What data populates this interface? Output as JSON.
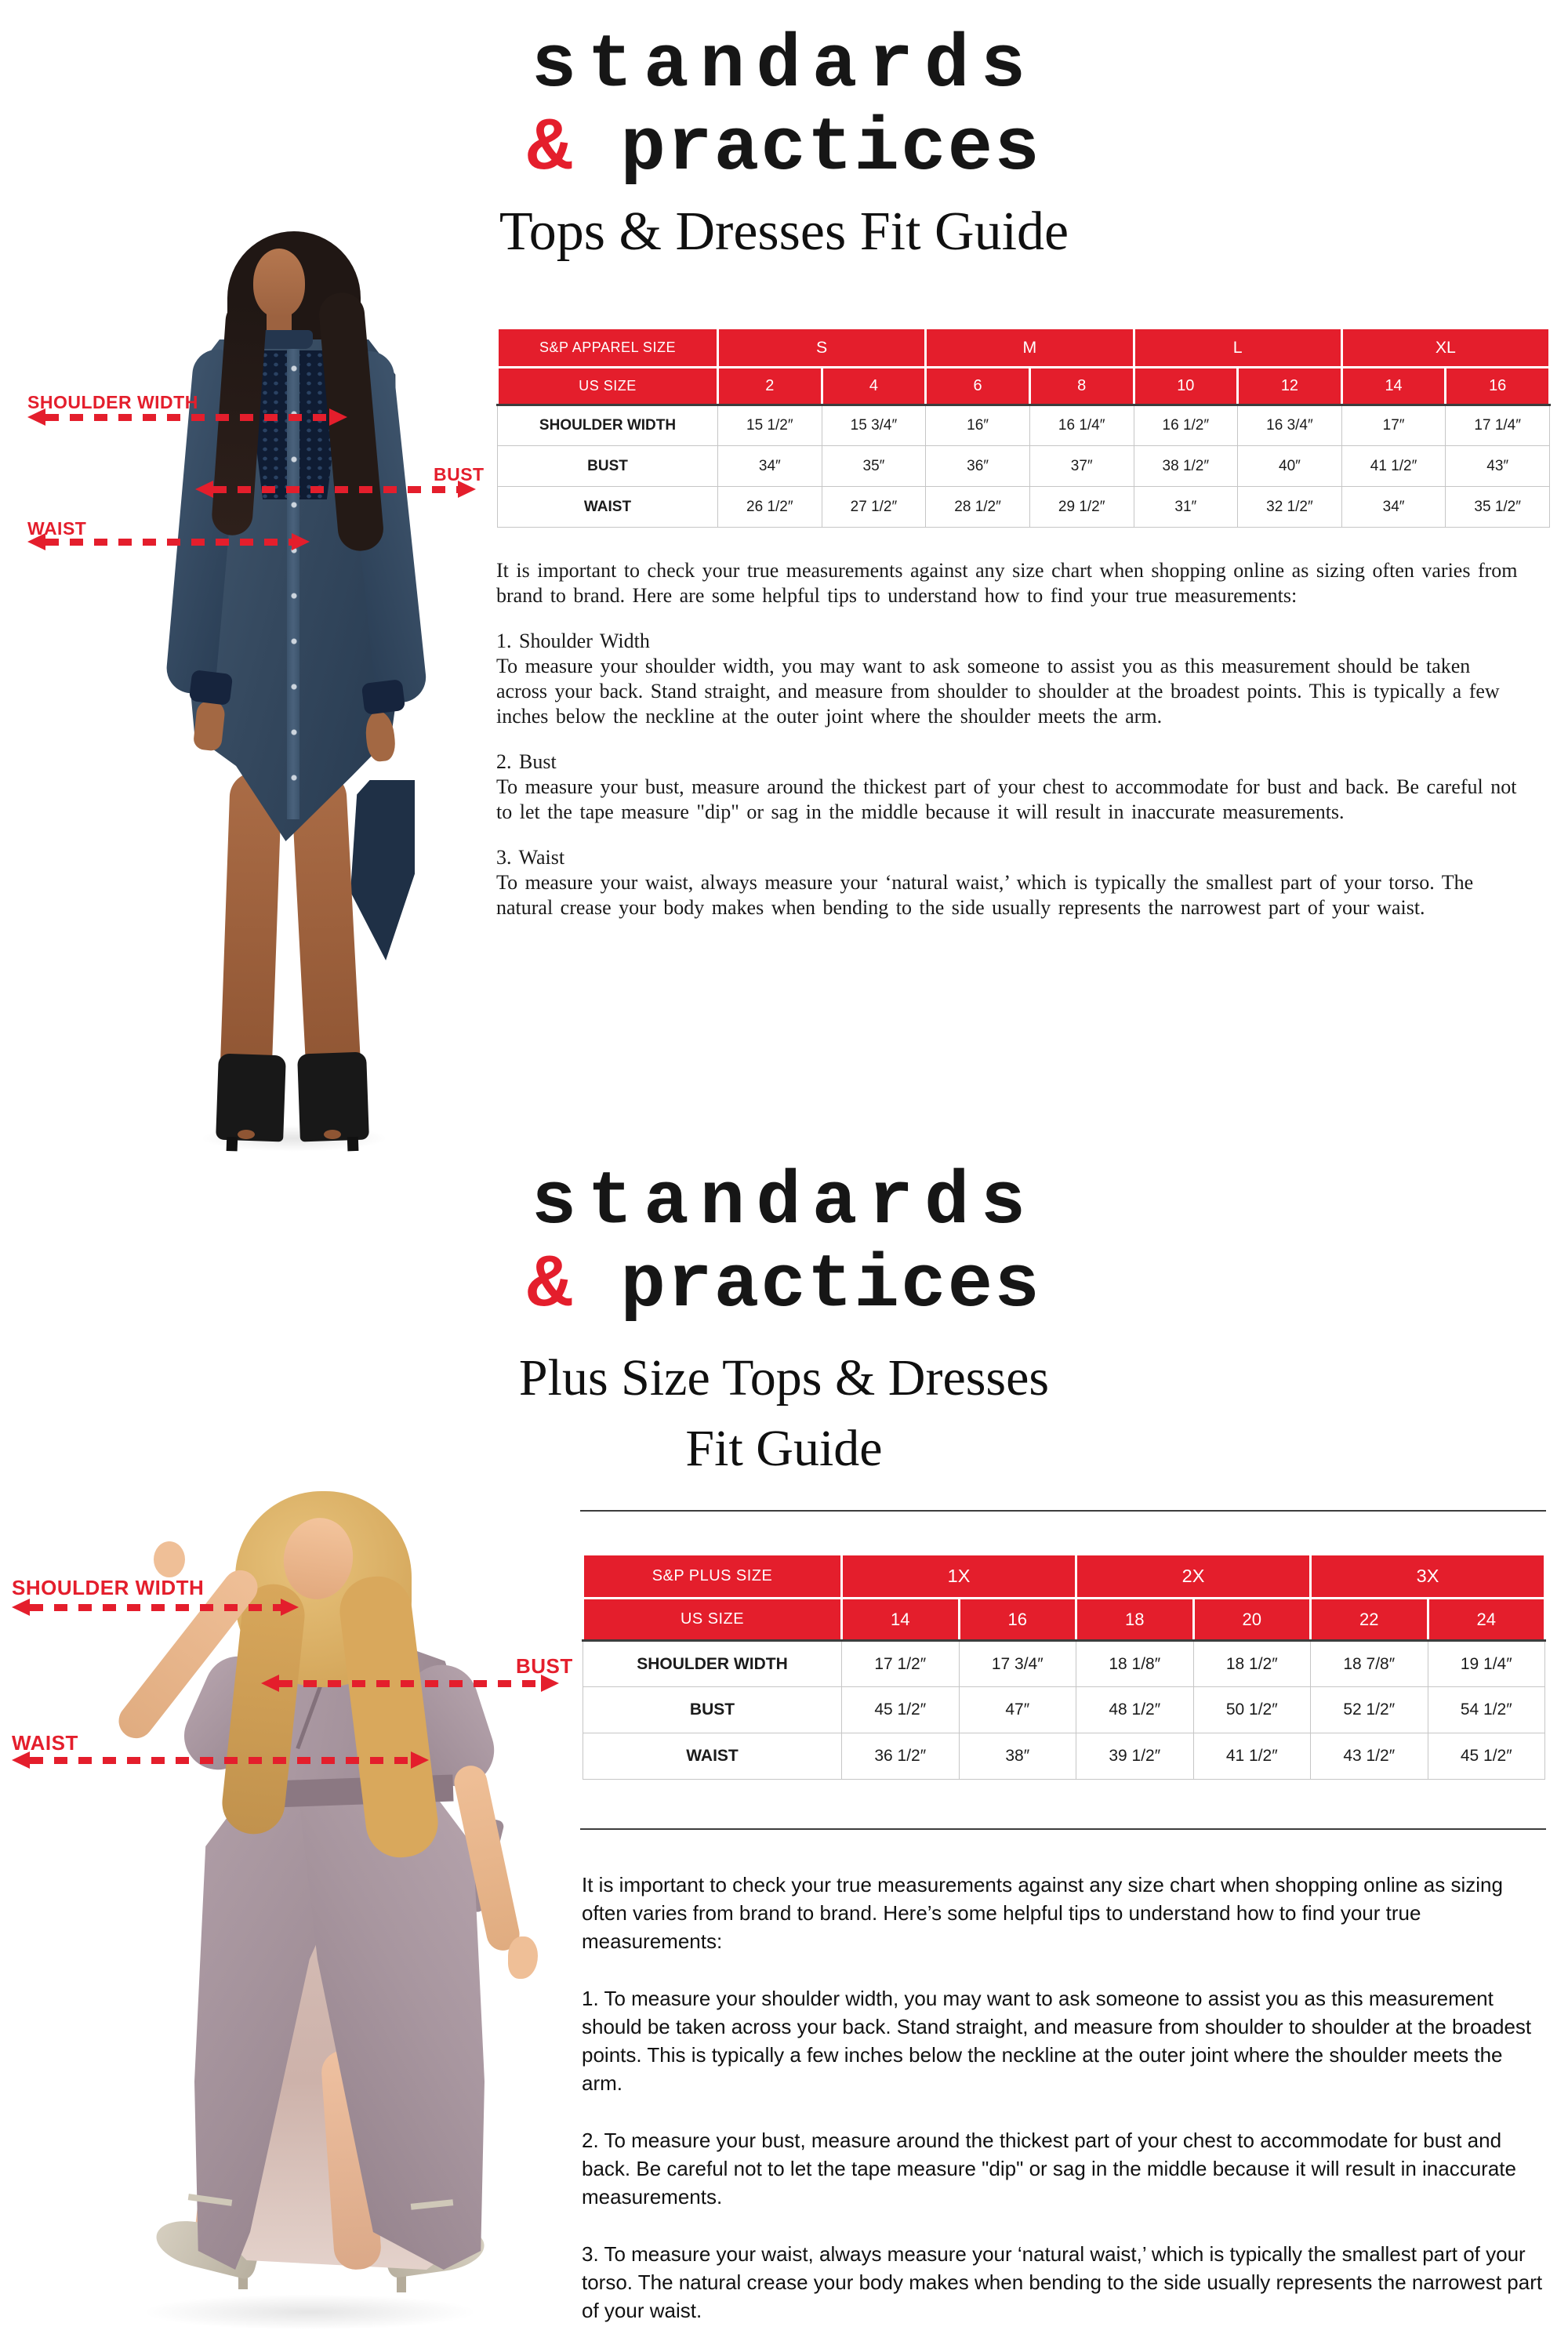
{
  "accent_red": "#e41e2c",
  "brand": {
    "line1": "standards",
    "amp": "&",
    "line2": "practices"
  },
  "regular": {
    "title": "Tops & Dresses Fit Guide",
    "labels": {
      "shoulder": "SHOULDER WIDTH",
      "bust": "BUST",
      "waist": "WAIST"
    },
    "table": {
      "corner": "S&P APPAREL SIZE",
      "us_label": "US SIZE",
      "groups": [
        {
          "label": "S",
          "span": 2
        },
        {
          "label": "M",
          "span": 2
        },
        {
          "label": "L",
          "span": 2
        },
        {
          "label": "XL",
          "span": 2
        }
      ],
      "us_sizes": [
        "2",
        "4",
        "6",
        "8",
        "10",
        "12",
        "14",
        "16"
      ],
      "rows": [
        {
          "label": "SHOULDER WIDTH",
          "values": [
            "15 1/2″",
            "15 3/4″",
            "16″",
            "16 1/4″",
            "16 1/2″",
            "16 3/4″",
            "17″",
            "17 1/4″"
          ]
        },
        {
          "label": "BUST",
          "values": [
            "34″",
            "35″",
            "36″",
            "37″",
            "38 1/2″",
            "40″",
            "41 1/2″",
            "43″"
          ]
        },
        {
          "label": "WAIST",
          "values": [
            "26 1/2″",
            "27 1/2″",
            "28 1/2″",
            "29 1/2″",
            "31″",
            "32 1/2″",
            "34″",
            "35 1/2″"
          ]
        }
      ]
    },
    "intro": "It is important to check your true measurements against any size chart when shopping online as sizing often varies from brand to brand. Here are some helpful tips to understand how to find your true measurements:",
    "tips": [
      {
        "title": "1. Shoulder Width",
        "body": "To measure your shoulder width, you may want to ask someone to assist you as this measurement should be taken across your back. Stand straight, and measure from shoulder to shoulder at the broadest points. This is typically a few inches below the neckline at the outer joint where the shoulder meets the arm."
      },
      {
        "title": "2. Bust",
        "body": "To measure your bust, measure around the thickest part of your chest to accommodate for bust and back. Be careful not to let the tape measure \"dip\" or sag in the middle because it will result in inaccurate measurements."
      },
      {
        "title": "3. Waist",
        "body": "To measure your waist, always measure your ‘natural waist,’ which is typically the smallest part of your torso.  The natural crease your body makes when bending to the side usually represents the narrowest part of your waist."
      }
    ]
  },
  "plus": {
    "title_line1": "Plus Size Tops & Dresses",
    "title_line2": "Fit Guide",
    "labels": {
      "shoulder": "SHOULDER WIDTH",
      "bust": "BUST",
      "waist": "WAIST"
    },
    "table": {
      "corner": "S&P PLUS SIZE",
      "us_label": "US SIZE",
      "groups": [
        {
          "label": "1X",
          "span": 2
        },
        {
          "label": "2X",
          "span": 2
        },
        {
          "label": "3X",
          "span": 2
        }
      ],
      "us_sizes": [
        "14",
        "16",
        "18",
        "20",
        "22",
        "24"
      ],
      "rows": [
        {
          "label": "SHOULDER WIDTH",
          "values": [
            "17 1/2″",
            "17 3/4″",
            "18 1/8″",
            "18 1/2″",
            "18 7/8″",
            "19 1/4″"
          ]
        },
        {
          "label": "BUST",
          "values": [
            "45 1/2″",
            "47″",
            "48 1/2″",
            "50 1/2″",
            "52 1/2″",
            "54 1/2″"
          ]
        },
        {
          "label": "WAIST",
          "values": [
            "36 1/2″",
            "38″",
            "39 1/2″",
            "41 1/2″",
            "43 1/2″",
            "45 1/2″"
          ]
        }
      ]
    },
    "intro": "It is important to check your true measurements against any size chart when shopping online as sizing often varies from brand to brand. Here’s some helpful tips to understand how to find your true measurements:",
    "tips": [
      {
        "body": "1. To measure your shoulder width, you may want to ask someone to assist you as this measurement should be taken across your back. Stand straight, and measure from shoulder to shoulder at the broadest points. This is typically a few inches below the neckline at the outer joint where the shoulder meets the arm."
      },
      {
        "body": "2. To measure your bust, measure around the thickest part of your chest to accommodate for bust and back. Be careful not to let the tape measure \"dip\" or sag in the middle because it will result in inaccurate measurements."
      },
      {
        "body": "3. To measure your waist, always measure your ‘natural waist,’ which is typically the smallest part of your torso.  The natural crease your body makes when bending to the side usually represents the narrowest part of your waist."
      }
    ]
  }
}
